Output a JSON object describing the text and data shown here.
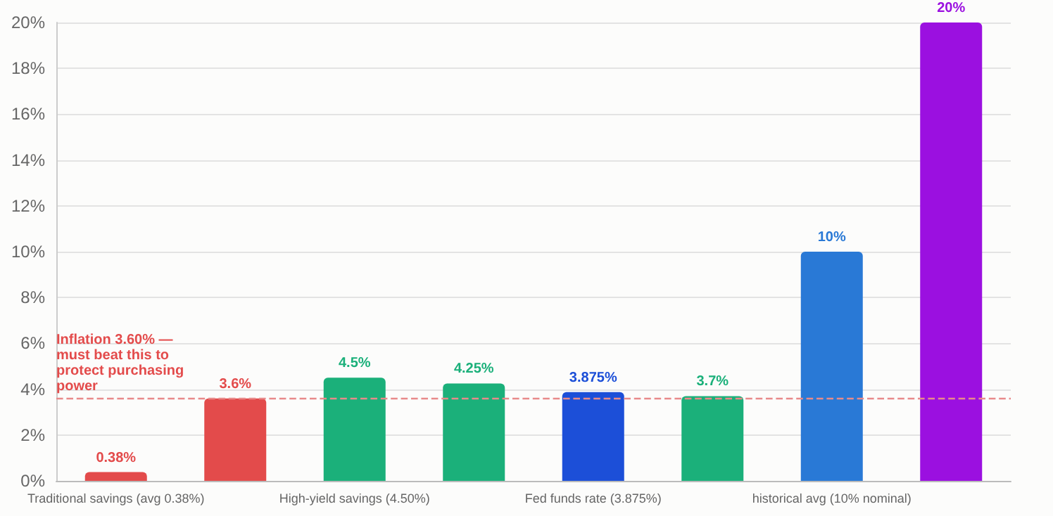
{
  "chart_data": {
    "type": "bar",
    "categories": [
      "Traditional savings (avg 0.38%)",
      null,
      "High-yield savings (4.50%)",
      null,
      "Fed funds rate (3.875%)",
      null,
      "historical avg (10% nominal)",
      null
    ],
    "values": [
      0.38,
      3.6,
      4.5,
      4.25,
      3.875,
      3.7,
      10,
      20
    ],
    "colors": [
      "#e34b4b",
      "#e34b4b",
      "#1bb07a",
      "#1bb07a",
      "#1c4fd8",
      "#1bb07a",
      "#2979d6",
      "#9b10e0"
    ],
    "value_labels": [
      "0.38%",
      "3.6%",
      "4.5%",
      "4.25%",
      "3.875%",
      "3.7%",
      "10%",
      "20%"
    ],
    "ylim": [
      0,
      20
    ],
    "yticks": [
      {
        "value": 0,
        "label": "0%"
      },
      {
        "value": 2,
        "label": "2%"
      },
      {
        "value": 4,
        "label": "4%"
      },
      {
        "value": 6,
        "label": "6%"
      },
      {
        "value": 8,
        "label": "8%"
      },
      {
        "value": 10,
        "label": "10%"
      },
      {
        "value": 12,
        "label": "12%"
      },
      {
        "value": 14,
        "label": "14%"
      },
      {
        "value": 16,
        "label": "16%"
      },
      {
        "value": 18,
        "label": "18%"
      },
      {
        "value": 20,
        "label": "20%"
      }
    ],
    "ref_lines": [
      {
        "axis": "y",
        "value": 3.6,
        "label": "Inflation 3.60% — must beat this to protect purchasing power",
        "color": "#e88a8a",
        "line_style": "dashed"
      }
    ],
    "grid": "y"
  }
}
